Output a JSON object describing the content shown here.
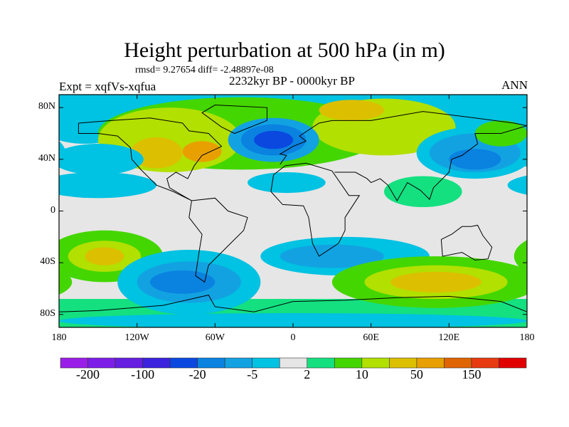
{
  "title": "Height perturbation at 500 hPa (in m)",
  "stats": "rmsd= 9.27654 diff= -2.48897e-08",
  "experiment": "Expt = xqfVs-xqfua",
  "period": "2232kyr BP - 0000kyr BP",
  "season": "ANN",
  "chart_data": {
    "type": "heatmap",
    "lat_ticks": [
      {
        "v": 80,
        "label": "80N"
      },
      {
        "v": 40,
        "label": "40N"
      },
      {
        "v": 0,
        "label": "0"
      },
      {
        "v": -40,
        "label": "40S"
      },
      {
        "v": -80,
        "label": "80S"
      }
    ],
    "lon_ticks": [
      {
        "v": -180,
        "label": "180"
      },
      {
        "v": -120,
        "label": "120W"
      },
      {
        "v": -60,
        "label": "60W"
      },
      {
        "v": 0,
        "label": "0"
      },
      {
        "v": 60,
        "label": "60E"
      },
      {
        "v": 120,
        "label": "120E"
      },
      {
        "v": 180,
        "label": "180"
      }
    ],
    "colorbar": {
      "colors": [
        "#9a1ee8",
        "#7d1ee8",
        "#661ee0",
        "#3a22de",
        "#0a48e0",
        "#0a82e0",
        "#12a2e2",
        "#00c2e2",
        "#e6e6e6",
        "#14e080",
        "#44d600",
        "#b2e000",
        "#dcc000",
        "#e8a000",
        "#e06400",
        "#e83a10",
        "#e00000"
      ],
      "labels": [
        {
          "i": 1,
          "text": "-200"
        },
        {
          "i": 3,
          "text": "-100"
        },
        {
          "i": 5,
          "text": "-20"
        },
        {
          "i": 7,
          "text": "-5"
        },
        {
          "i": 9,
          "text": "2"
        },
        {
          "i": 11,
          "text": "10"
        },
        {
          "i": 13,
          "text": "50"
        },
        {
          "i": 15,
          "text": "150"
        }
      ]
    },
    "anomaly_regions": [
      {
        "lon": -160,
        "lat": 72,
        "rlon": 40,
        "rlat": 20,
        "lvl": 7
      },
      {
        "lon": -40,
        "lat": 60,
        "rlon": 110,
        "rlat": 28,
        "lvl": 10
      },
      {
        "lon": -95,
        "lat": 55,
        "rlon": 55,
        "rlat": 25,
        "lvl": 11
      },
      {
        "lon": -105,
        "lat": 45,
        "rlon": 20,
        "rlat": 12,
        "lvl": 12
      },
      {
        "lon": -70,
        "lat": 46,
        "rlon": 15,
        "rlat": 8,
        "lvl": 13
      },
      {
        "lon": 70,
        "lat": 65,
        "rlon": 55,
        "rlat": 22,
        "lvl": 11
      },
      {
        "lon": 45,
        "lat": 78,
        "rlon": 25,
        "rlat": 8,
        "lvl": 12
      },
      {
        "lon": -15,
        "lat": 55,
        "rlon": 35,
        "rlat": 17,
        "lvl": 6
      },
      {
        "lon": -15,
        "lat": 55,
        "rlon": 25,
        "rlat": 12,
        "lvl": 5
      },
      {
        "lon": -15,
        "lat": 55,
        "rlon": 15,
        "rlat": 7,
        "lvl": 4
      },
      {
        "lon": 140,
        "lat": 45,
        "rlon": 45,
        "rlat": 20,
        "lvl": 7
      },
      {
        "lon": 140,
        "lat": 45,
        "rlon": 35,
        "rlat": 15,
        "lvl": 6
      },
      {
        "lon": 140,
        "lat": 40,
        "rlon": 20,
        "rlat": 8,
        "lvl": 5
      },
      {
        "lon": 160,
        "lat": 60,
        "rlon": 20,
        "rlat": 10,
        "lvl": 10
      },
      {
        "lon": -150,
        "lat": 40,
        "rlon": 35,
        "rlat": 12,
        "lvl": 7
      },
      {
        "lon": -150,
        "lat": 20,
        "rlon": 45,
        "rlat": 10,
        "lvl": 7
      },
      {
        "lon": -5,
        "lat": 22,
        "rlon": 30,
        "rlat": 8,
        "lvl": 7
      },
      {
        "lon": 100,
        "lat": 15,
        "rlon": 30,
        "rlat": 12,
        "lvl": 9
      },
      {
        "lon": -145,
        "lat": -35,
        "rlon": 45,
        "rlat": 20,
        "lvl": 10
      },
      {
        "lon": -145,
        "lat": -35,
        "rlon": 28,
        "rlat": 12,
        "lvl": 11
      },
      {
        "lon": -145,
        "lat": -35,
        "rlon": 15,
        "rlat": 7,
        "lvl": 12
      },
      {
        "lon": -80,
        "lat": -55,
        "rlon": 55,
        "rlat": 25,
        "lvl": 7
      },
      {
        "lon": -80,
        "lat": -55,
        "rlon": 40,
        "rlat": 16,
        "lvl": 6
      },
      {
        "lon": -85,
        "lat": -55,
        "rlon": 25,
        "rlat": 9,
        "lvl": 5
      },
      {
        "lon": 40,
        "lat": -35,
        "rlon": 65,
        "rlat": 15,
        "lvl": 7
      },
      {
        "lon": 30,
        "lat": -35,
        "rlon": 40,
        "rlat": 9,
        "lvl": 6
      },
      {
        "lon": 110,
        "lat": -55,
        "rlon": 80,
        "rlat": 20,
        "lvl": 10
      },
      {
        "lon": 110,
        "lat": -55,
        "rlon": 55,
        "rlat": 13,
        "lvl": 11
      },
      {
        "lon": 110,
        "lat": -55,
        "rlon": 35,
        "rlat": 8,
        "lvl": 12
      },
      {
        "lon": 0,
        "lat": -85,
        "rlon": 180,
        "rlat": 6,
        "lvl": 7
      }
    ]
  }
}
